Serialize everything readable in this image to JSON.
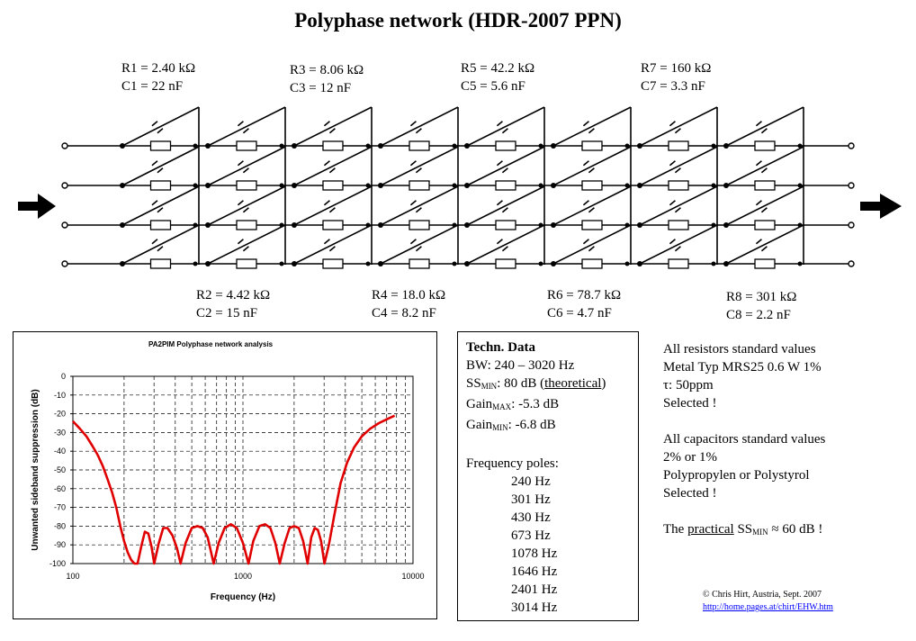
{
  "title": "Polyphase network (HDR-2007 PPN)",
  "stages": {
    "s1": {
      "r": "R1 = 2.40 kΩ",
      "c": "C1 = 22 nF"
    },
    "s2": {
      "r": "R2 = 4.42 kΩ",
      "c": "C2 = 15 nF"
    },
    "s3": {
      "r": "R3 = 8.06 kΩ",
      "c": "C3 = 12 nF"
    },
    "s4": {
      "r": "R4 = 18.0 kΩ",
      "c": "C4 = 8.2 nF"
    },
    "s5": {
      "r": "R5 = 42.2 kΩ",
      "c": "C5 = 5.6 nF"
    },
    "s6": {
      "r": "R6 = 78.7 kΩ",
      "c": "C6 = 4.7 nF"
    },
    "s7": {
      "r": "R7 = 160 kΩ",
      "c": "C7 = 3.3 nF"
    },
    "s8": {
      "r": "R8 = 301 kΩ",
      "c": "C8 = 2.2 nF"
    }
  },
  "tech": {
    "heading": "Techn. Data",
    "bw": "BW: 240 – 3020 Hz",
    "ss_pre": "SS",
    "ss_sub": "MIN",
    "ss_post": ": 80 dB (",
    "ss_under": "theoretical",
    "ss_end": ")",
    "gmax_pre": "Gain",
    "gmax_sub": "MAX",
    "gmax_val": ": -5.3 dB",
    "gmin_pre": "Gain",
    "gmin_sub": "MIN",
    "gmin_val": ": -6.8 dB",
    "poles_heading": "Frequency poles:",
    "poles": [
      "240  Hz",
      "301  Hz",
      "430  Hz",
      "673  Hz",
      "1078 Hz",
      "1646 Hz",
      "2401 Hz",
      "3014 Hz"
    ]
  },
  "notes": {
    "r1": "All resistors standard values",
    "r2": "Metal Typ MRS25 0.6 W  1%",
    "r3": "τ: 50ppm",
    "r4": "Selected !",
    "c1": "All capacitors standard values",
    "c2": "2% or 1%",
    "c3": "Polypropylen or Polystyrol",
    "c4": "Selected !",
    "p_pre": "The ",
    "p_under": "practical",
    "p_mid": " SS",
    "p_sub": "MIN",
    "p_end": " ≈ 60 dB !"
  },
  "copyright": "© Chris Hirt, Austria, Sept. 2007",
  "link": "http://home.pages.at/chirt/EHW.htm",
  "colors": {
    "curve": "#e00000",
    "link": "#0000ff"
  },
  "chart_data": {
    "type": "line",
    "title": "PA2PIM Polyphase network analysis",
    "xlabel": "Frequency (Hz)",
    "ylabel": "Unwanted sideband suppression (dB)",
    "xscale": "log",
    "xlim": [
      100,
      10000
    ],
    "ylim": [
      -100,
      0
    ],
    "xticks": [
      "100",
      "1000",
      "10000"
    ],
    "yticks": [
      "0",
      "-10",
      "-20",
      "-30",
      "-40",
      "-50",
      "-60",
      "-70",
      "-80",
      "-90",
      "-100"
    ],
    "grid": true,
    "poles": [
      240,
      301,
      430,
      673,
      1078,
      1646,
      2401,
      3014
    ],
    "series": [
      {
        "x": [
          100,
          110,
          120,
          130,
          140,
          150,
          160,
          170,
          180,
          190,
          200,
          210,
          220,
          230,
          240,
          252,
          265,
          278,
          290,
          301,
          320,
          340,
          360,
          385,
          410,
          430,
          460,
          500,
          540,
          580,
          620,
          673,
          720,
          780,
          850,
          920,
          1000,
          1078,
          1150,
          1250,
          1350,
          1450,
          1550,
          1646,
          1760,
          1880,
          2000,
          2130,
          2260,
          2401,
          2520,
          2640,
          2760,
          2880,
          3014,
          3200,
          3450,
          3750,
          4100,
          4500,
          5000,
          5600,
          6300,
          7000,
          7800
        ],
        "y": [
          -24,
          -28,
          -32,
          -37,
          -42,
          -48,
          -55,
          -62,
          -70,
          -80,
          -88,
          -94,
          -98,
          -100,
          -100,
          -91,
          -83,
          -84,
          -91,
          -100,
          -89,
          -81,
          -81,
          -85,
          -92,
          -100,
          -89,
          -81,
          -80,
          -81,
          -86,
          -100,
          -89,
          -81,
          -79,
          -81,
          -89,
          -100,
          -88,
          -80,
          -79,
          -81,
          -89,
          -100,
          -89,
          -81,
          -80,
          -81,
          -88,
          -100,
          -86,
          -81,
          -82,
          -88,
          -100,
          -90,
          -74,
          -57,
          -46,
          -38,
          -32,
          -28,
          -25,
          -23,
          -21
        ]
      }
    ]
  }
}
